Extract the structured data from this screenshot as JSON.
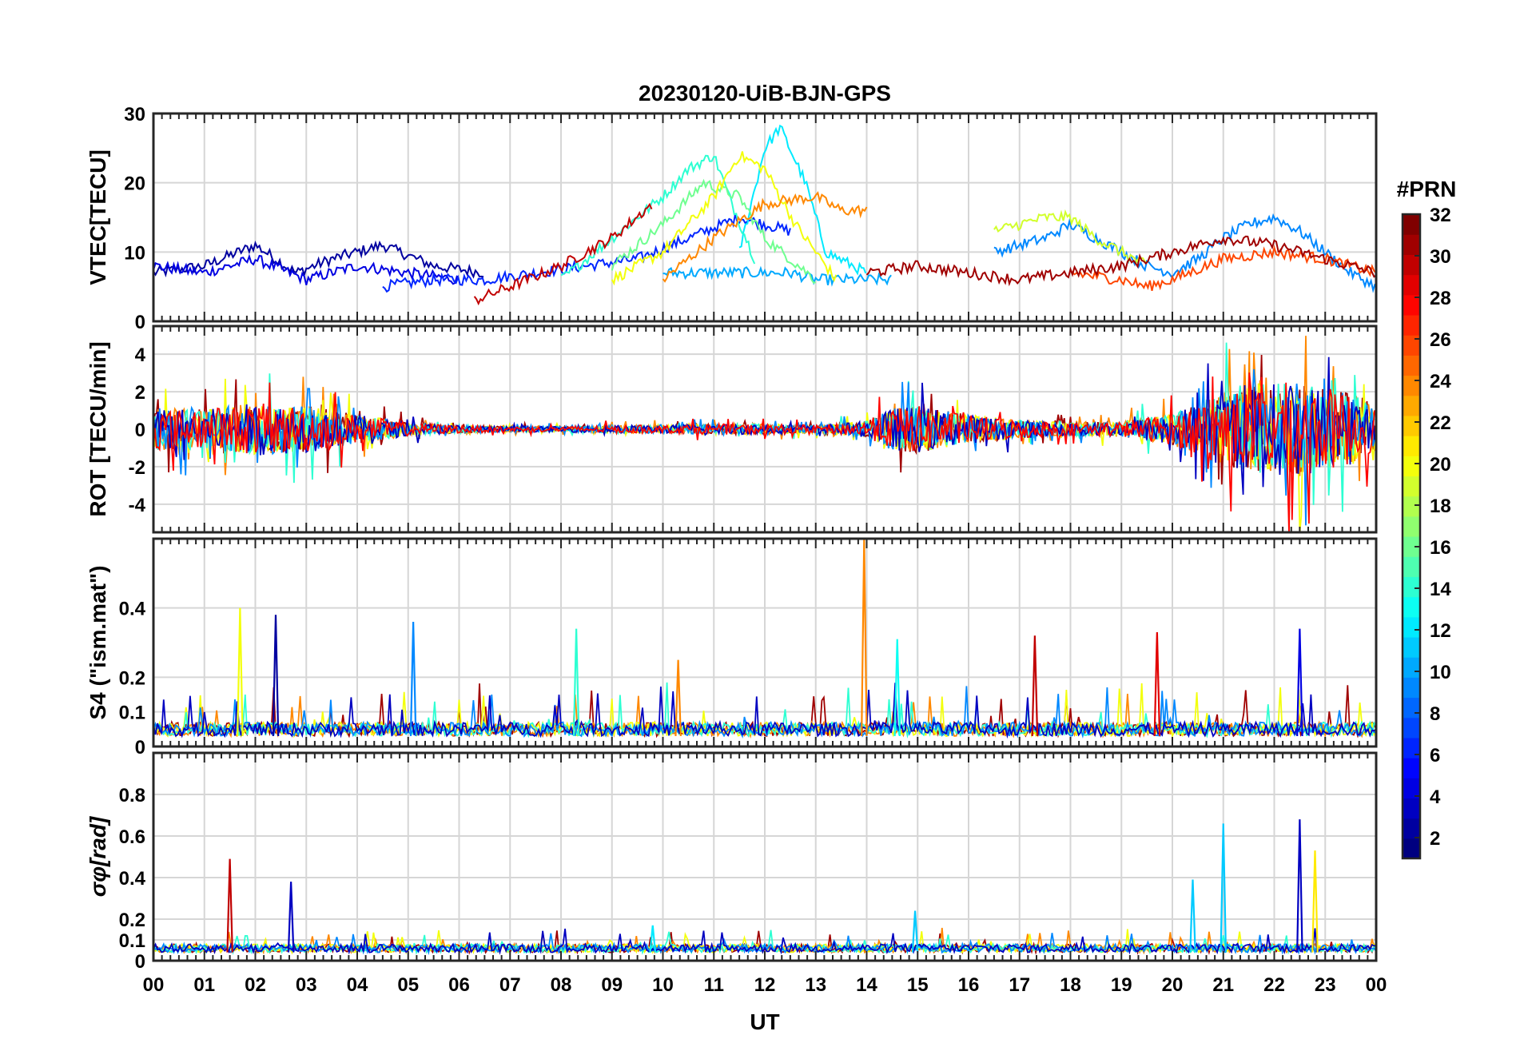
{
  "title": "20230120-UiB-BJN-GPS",
  "x_axis": {
    "label": "UT",
    "ticks": [
      "00",
      "01",
      "02",
      "03",
      "04",
      "05",
      "06",
      "07",
      "08",
      "09",
      "10",
      "11",
      "12",
      "13",
      "14",
      "15",
      "16",
      "17",
      "18",
      "19",
      "20",
      "21",
      "22",
      "23",
      "00"
    ]
  },
  "colorbar": {
    "label": "#PRN",
    "ticks": [
      2,
      4,
      6,
      8,
      10,
      12,
      14,
      16,
      18,
      20,
      22,
      24,
      26,
      28,
      30,
      32
    ],
    "range": [
      1,
      32
    ]
  },
  "chart_data": [
    {
      "type": "line",
      "id": "vtec",
      "ylabel": "VTEC[TECU]",
      "ylim": [
        0,
        30
      ],
      "yticks": [
        0,
        10,
        20,
        30
      ],
      "xlim": [
        0,
        24
      ],
      "grid": true,
      "series": [
        {
          "prn": 2,
          "x": [
            0,
            1,
            2,
            2.8,
            3.5,
            4.5,
            5.5,
            6.5
          ],
          "y": [
            7,
            8,
            11,
            7,
            9,
            11,
            8,
            7
          ]
        },
        {
          "prn": 4,
          "x": [
            0,
            1,
            2,
            3,
            4,
            5,
            6
          ],
          "y": [
            8,
            7,
            9,
            6,
            8,
            7,
            6
          ]
        },
        {
          "prn": 6,
          "x": [
            4.5,
            5.5,
            6.5,
            7.5,
            8.5,
            9.5,
            10.5,
            11.5,
            12.5
          ],
          "y": [
            5,
            6,
            6,
            7,
            8,
            9,
            12,
            15,
            13
          ]
        },
        {
          "prn": 10,
          "x": [
            10,
            10.5,
            11,
            11.5,
            12,
            12.5,
            13,
            13.5,
            14,
            14.5
          ],
          "y": [
            7,
            7,
            7,
            7,
            7,
            7,
            6,
            6,
            6,
            6
          ]
        },
        {
          "prn": 12,
          "x": [
            11.5,
            12,
            12.3,
            12.8,
            13.2,
            14
          ],
          "y": [
            10,
            25,
            28,
            20,
            10,
            7
          ]
        },
        {
          "prn": 14,
          "x": [
            8,
            9,
            10,
            10.5,
            11,
            11.3,
            11.8
          ],
          "y": [
            6,
            12,
            18,
            22,
            24,
            18,
            9
          ]
        },
        {
          "prn": 16,
          "x": [
            9,
            10,
            10.8,
            11.5,
            12,
            13
          ],
          "y": [
            8,
            14,
            20,
            18,
            12,
            6
          ]
        },
        {
          "prn": 20,
          "x": [
            9,
            10,
            11,
            11.5,
            12,
            12.6,
            13.4
          ],
          "y": [
            6,
            10,
            18,
            24,
            22,
            14,
            6
          ]
        },
        {
          "prn": 24,
          "x": [
            10,
            11,
            12,
            13,
            13.5,
            14
          ],
          "y": [
            6,
            12,
            17,
            18,
            16,
            16
          ]
        },
        {
          "prn": 30,
          "x": [
            6.3,
            7,
            8,
            9,
            9.8
          ],
          "y": [
            3,
            5,
            8,
            12,
            17
          ]
        },
        {
          "prn": 9,
          "x": [
            16.5,
            17,
            17.5,
            18,
            18.5,
            19,
            19.5,
            20,
            20.5,
            21,
            21.5,
            22,
            22.5,
            23,
            23.5,
            24
          ],
          "y": [
            10,
            11,
            12,
            14,
            12,
            10,
            8,
            7,
            9,
            12,
            14,
            15,
            13,
            10,
            7,
            5
          ]
        },
        {
          "prn": 19,
          "x": [
            16.5,
            17,
            17.5,
            18,
            18.5,
            19,
            19.5
          ],
          "y": [
            13,
            14,
            15,
            15,
            12,
            10,
            8
          ]
        },
        {
          "prn": 26,
          "x": [
            18,
            19,
            19.5,
            20,
            21,
            22,
            23,
            24
          ],
          "y": [
            7,
            6,
            5,
            6,
            9,
            10,
            9,
            7
          ]
        },
        {
          "prn": 31,
          "x": [
            14,
            15,
            16,
            17,
            18,
            19,
            20,
            21,
            22,
            23,
            24
          ],
          "y": [
            7,
            8,
            7,
            6,
            7,
            8,
            10,
            12,
            11,
            9,
            7
          ]
        }
      ]
    },
    {
      "type": "line",
      "id": "rot",
      "ylabel": "ROT [TECU/min]",
      "ylim": [
        -5.5,
        5.5
      ],
      "yticks": [
        -4,
        -2,
        0,
        2,
        4
      ],
      "xlim": [
        0,
        24
      ],
      "grid": true,
      "envelope_amplitude": {
        "x": [
          0,
          1,
          2,
          3,
          4,
          5,
          6,
          7,
          8,
          9,
          10,
          11,
          12,
          13,
          14,
          14.5,
          15,
          16,
          17,
          18,
          19,
          20,
          20.5,
          21,
          21.5,
          22,
          22.5,
          23,
          23.5,
          24
        ],
        "a": [
          1.6,
          1.5,
          2.0,
          1.8,
          1.1,
          0.5,
          0.3,
          0.2,
          0.2,
          0.3,
          0.3,
          0.4,
          0.4,
          0.3,
          0.6,
          1.6,
          1.8,
          1.1,
          0.7,
          0.5,
          0.6,
          1.2,
          2.0,
          3.0,
          3.2,
          3.6,
          3.6,
          3.2,
          2.8,
          1.6
        ]
      }
    },
    {
      "type": "line",
      "id": "s4",
      "ylabel": "S4 (\"ism.mat\")",
      "ylim": [
        0,
        0.6
      ],
      "yticks": [
        0,
        0.1,
        0.2,
        0.4
      ],
      "xlim": [
        0,
        24
      ],
      "grid": true,
      "peaks": [
        {
          "x": 1.7,
          "y": 0.4,
          "prn": 20
        },
        {
          "x": 2.4,
          "y": 0.38,
          "prn": 2
        },
        {
          "x": 5.1,
          "y": 0.36,
          "prn": 9
        },
        {
          "x": 8.3,
          "y": 0.34,
          "prn": 14
        },
        {
          "x": 10.3,
          "y": 0.25,
          "prn": 24
        },
        {
          "x": 13.95,
          "y": 0.6,
          "prn": 24
        },
        {
          "x": 14.6,
          "y": 0.31,
          "prn": 13
        },
        {
          "x": 17.3,
          "y": 0.32,
          "prn": 30
        },
        {
          "x": 19.7,
          "y": 0.33,
          "prn": 29
        },
        {
          "x": 22.5,
          "y": 0.34,
          "prn": 4
        }
      ]
    },
    {
      "type": "line",
      "id": "sigma_phi",
      "ylabel": "σφ[rad]",
      "ylim": [
        0,
        1.0
      ],
      "yticks": [
        0,
        0.1,
        0.2,
        0.4,
        0.6,
        0.8
      ],
      "xlim": [
        0,
        24
      ],
      "grid": true,
      "peaks": [
        {
          "x": 1.5,
          "y": 0.49,
          "prn": 30
        },
        {
          "x": 2.7,
          "y": 0.38,
          "prn": 3
        },
        {
          "x": 9.8,
          "y": 0.17,
          "prn": 12
        },
        {
          "x": 14.95,
          "y": 0.24,
          "prn": 11
        },
        {
          "x": 20.4,
          "y": 0.39,
          "prn": 11
        },
        {
          "x": 21.0,
          "y": 0.66,
          "prn": 11
        },
        {
          "x": 22.5,
          "y": 0.68,
          "prn": 3
        },
        {
          "x": 22.8,
          "y": 0.53,
          "prn": 21
        }
      ]
    }
  ]
}
